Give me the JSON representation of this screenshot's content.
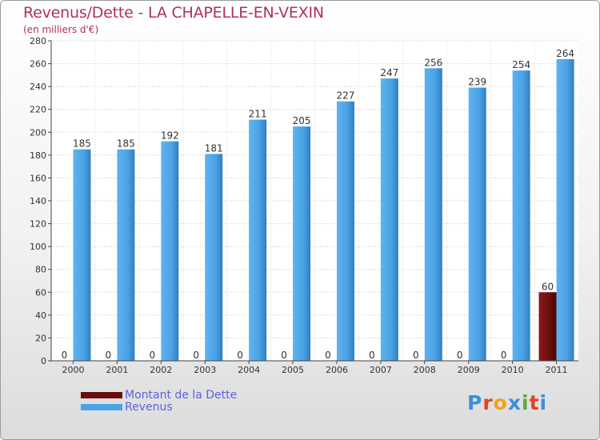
{
  "title": "Revenus/Dette - LA CHAPELLE-EN-VEXIN",
  "subtitle": "(en milliers d'€)",
  "brand": "Proxiti",
  "colors": {
    "debt": "#6b0d0d",
    "revenue": "#4ba3e6",
    "title": "#b0305a",
    "legend_text": "#5e5ee0"
  },
  "chart_data": {
    "type": "bar",
    "title": "Revenus/Dette - LA CHAPELLE-EN-VEXIN",
    "subtitle": "(en milliers d'€)",
    "categories": [
      "2000",
      "2001",
      "2002",
      "2003",
      "2004",
      "2005",
      "2006",
      "2007",
      "2008",
      "2009",
      "2010",
      "2011"
    ],
    "series": [
      {
        "name": "Montant de la Dette",
        "values": [
          0,
          0,
          0,
          0,
          0,
          0,
          0,
          0,
          0,
          0,
          0,
          60
        ]
      },
      {
        "name": "Revenus",
        "values": [
          185,
          185,
          192,
          181,
          211,
          205,
          227,
          247,
          256,
          239,
          254,
          264
        ]
      }
    ],
    "ylim": [
      0,
      280
    ],
    "yticks": [
      0,
      20,
      40,
      60,
      80,
      100,
      120,
      140,
      160,
      180,
      200,
      220,
      240,
      260,
      280
    ],
    "grid": true,
    "legend_position": "bottom-left",
    "xlabel": "",
    "ylabel": ""
  }
}
